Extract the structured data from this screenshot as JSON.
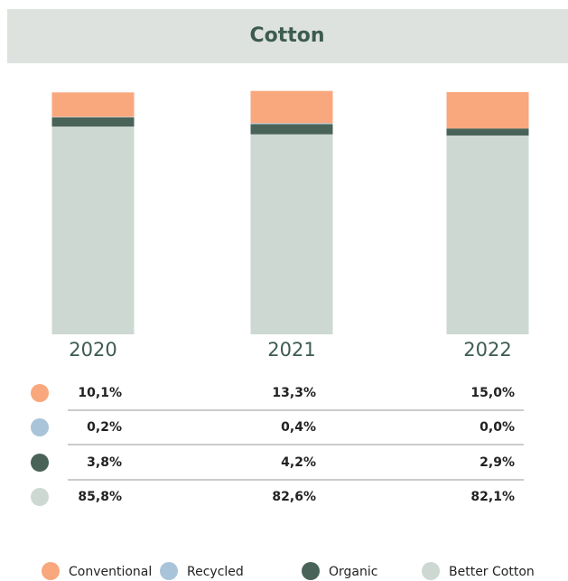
{
  "chart_data": {
    "type": "bar",
    "title": "Cotton",
    "categories": [
      "2020",
      "2021",
      "2022"
    ],
    "ylim": [
      0,
      100
    ],
    "series": [
      {
        "name": "Conventional",
        "color": "#f9a77c",
        "values": [
          10.1,
          13.3,
          15.0
        ],
        "value_labels": [
          "10,1%",
          "13,3%",
          "15,0%"
        ]
      },
      {
        "name": "Recycled",
        "color": "#a9c4d9",
        "values": [
          0.2,
          0.4,
          0.0
        ],
        "value_labels": [
          "0,2%",
          "0,4%",
          "0,0%"
        ]
      },
      {
        "name": "Organic",
        "color": "#4a6358",
        "values": [
          3.8,
          4.2,
          2.9
        ],
        "value_labels": [
          "3,8%",
          "4,2%",
          "2,9%"
        ]
      },
      {
        "name": "Better Cotton",
        "color": "#cdd8d2",
        "values": [
          85.8,
          82.6,
          82.1
        ],
        "value_labels": [
          "85,8%",
          "82,6%",
          "82,1%"
        ]
      }
    ]
  }
}
